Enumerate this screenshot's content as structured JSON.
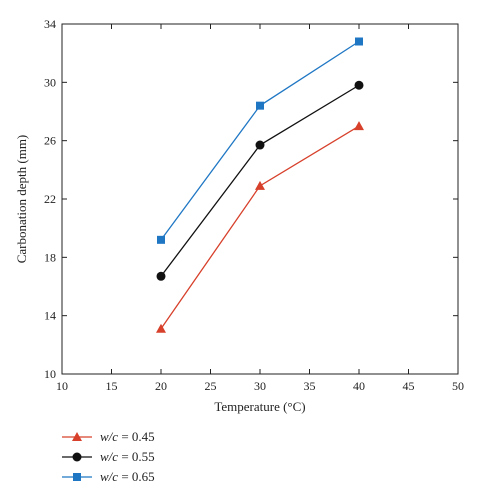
{
  "chart_data": {
    "type": "line",
    "xlabel": "Temperature (°C)",
    "ylabel": "Carbonation depth (mm)",
    "xlim": [
      10,
      50
    ],
    "ylim": [
      10,
      34
    ],
    "xticks": [
      10,
      15,
      20,
      25,
      30,
      35,
      40,
      45,
      50
    ],
    "yticks": [
      10,
      14,
      18,
      22,
      26,
      30,
      34
    ],
    "grid": false,
    "legend_position": "bottom-left",
    "x": [
      20,
      30,
      40
    ],
    "series": [
      {
        "name_prefix": "w/c",
        "name_value": " = 0.45",
        "marker": "triangle",
        "color": "#d7402b",
        "values": [
          13.1,
          22.9,
          27.0
        ]
      },
      {
        "name_prefix": "w/c",
        "name_value": " = 0.55",
        "marker": "circle",
        "color": "#111111",
        "values": [
          16.7,
          25.7,
          29.8
        ]
      },
      {
        "name_prefix": "w/c",
        "name_value": " = 0.65",
        "marker": "square",
        "color": "#1f77c4",
        "values": [
          19.2,
          28.4,
          32.8
        ]
      }
    ]
  }
}
